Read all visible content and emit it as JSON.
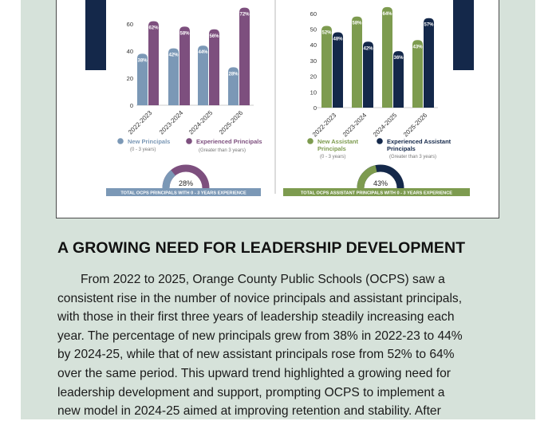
{
  "colors": {
    "panel_bg": "#d6e2da",
    "navy": "#14284a",
    "principal_new": "#7b98b6",
    "principal_exp": "#7d4f7e",
    "assistant_new": "#7d9b4f",
    "assistant_exp": "#14284a"
  },
  "chart_data": [
    {
      "type": "bar",
      "categories": [
        "2022-2023",
        "2023-2024",
        "2024-2025",
        "2025-2026"
      ],
      "ylim": [
        0,
        70
      ],
      "yticks": [
        0,
        20,
        40,
        60
      ],
      "series": [
        {
          "name": "New Principals",
          "sublabel": "(0 - 3 years)",
          "values": [
            38,
            42,
            44,
            28
          ],
          "labels": [
            "38%",
            "42%",
            "44%",
            "28%"
          ]
        },
        {
          "name": "Experienced Principals",
          "sublabel": "(Greater than 3 years)",
          "values": [
            62,
            58,
            56,
            72
          ],
          "labels": [
            "62%",
            "58%",
            "56%",
            "72%"
          ]
        }
      ],
      "gauge": {
        "value": 28,
        "label": "28%",
        "caption": "TOTAL OCPS PRINCIPALS WITH 0 - 3 YEARS EXPERIENCE"
      }
    },
    {
      "type": "bar",
      "categories": [
        "2022-2023",
        "2023-2024",
        "2024-2025",
        "2025-2026"
      ],
      "ylim": [
        0,
        67
      ],
      "yticks": [
        0,
        10,
        20,
        30,
        40,
        50,
        60
      ],
      "series": [
        {
          "name": "New Assistant Principals",
          "sublabel": "(0 - 3 years)",
          "values": [
            52,
            58,
            64,
            43
          ],
          "labels": [
            "52%",
            "58%",
            "64%",
            "43%"
          ]
        },
        {
          "name": "Experienced Assistant Principals",
          "sublabel": "(Greater than 3 years)",
          "values": [
            48,
            42,
            36,
            57
          ],
          "labels": [
            "48%",
            "42%",
            "36%",
            "57%"
          ]
        }
      ],
      "gauge": {
        "value": 43,
        "label": "43%",
        "caption": "TOTAL OCPS ASSISTANT PRINCIPALS  WITH 0 - 3 YEARS EXPERIENCE"
      }
    }
  ],
  "article": {
    "heading": "A GROWING NEED FOR LEADERSHIP DEVELOPMENT",
    "lines": [
      "From 2022 to 2025, Orange County Public Schools (OCPS) saw a",
      "consistent rise in the number of novice principals and assistant principals,",
      "with those in their first three years of leadership steadily increasing each",
      "year. The percentage of new principals grew from 38% in 2022-23 to 44%",
      "by 2024-25, while that of new assistant principals rose from 52% to 64%",
      "over the same period. This upward trend highlighted a growing need for",
      "leadership development and support, prompting OCPS to implement a",
      "new model in 2024-25 aimed at improving retention and stability. After"
    ]
  }
}
